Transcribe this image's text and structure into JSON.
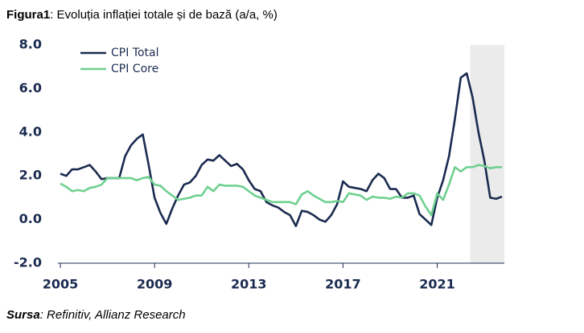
{
  "chart_data": {
    "type": "line",
    "title_label": "Figura1",
    "title": ": Evoluția inflației totale și de bază (a/a, %)",
    "source_label": "Sursa",
    "source": ": Refinitiv, Allianz Research",
    "x": [
      2005,
      2005.25,
      2005.5,
      2005.75,
      2006,
      2006.25,
      2006.5,
      2006.75,
      2007,
      2007.25,
      2007.5,
      2007.75,
      2008,
      2008.25,
      2008.5,
      2008.75,
      2009,
      2009.25,
      2009.5,
      2009.75,
      2010,
      2010.25,
      2010.5,
      2010.75,
      2011,
      2011.25,
      2011.5,
      2011.75,
      2012,
      2012.25,
      2012.5,
      2012.75,
      2013,
      2013.25,
      2013.5,
      2013.75,
      2014,
      2014.25,
      2014.5,
      2014.75,
      2015,
      2015.25,
      2015.5,
      2015.75,
      2016,
      2016.25,
      2016.5,
      2016.75,
      2017,
      2017.25,
      2017.5,
      2017.75,
      2018,
      2018.25,
      2018.5,
      2018.75,
      2019,
      2019.25,
      2019.5,
      2019.75,
      2020,
      2020.25,
      2020.5,
      2020.75,
      2021,
      2021.25,
      2021.5,
      2021.75,
      2022,
      2022.25,
      2022.5,
      2022.75,
      2023,
      2023.25,
      2023.5,
      2023.75
    ],
    "series": [
      {
        "name": "CPI Total",
        "color": "#1b2b50",
        "values": [
          2.1,
          2.0,
          2.3,
          2.3,
          2.4,
          2.5,
          2.2,
          1.85,
          1.9,
          1.9,
          1.9,
          2.9,
          3.4,
          3.7,
          3.9,
          2.5,
          1.0,
          0.3,
          -0.2,
          0.5,
          1.1,
          1.6,
          1.7,
          2.0,
          2.5,
          2.75,
          2.7,
          2.95,
          2.7,
          2.45,
          2.55,
          2.3,
          1.8,
          1.4,
          1.3,
          0.8,
          0.65,
          0.55,
          0.35,
          0.2,
          -0.3,
          0.4,
          0.35,
          0.2,
          0.0,
          -0.1,
          0.2,
          0.7,
          1.75,
          1.5,
          1.45,
          1.4,
          1.3,
          1.8,
          2.1,
          1.9,
          1.4,
          1.4,
          1.0,
          1.0,
          1.1,
          0.25,
          0.0,
          -0.25,
          1.0,
          1.8,
          2.9,
          4.6,
          6.5,
          6.7,
          5.6,
          4.0,
          2.7,
          1.0,
          0.95,
          1.05
        ]
      },
      {
        "name": "CPI Core",
        "color": "#6fd08f",
        "values": [
          1.65,
          1.5,
          1.3,
          1.35,
          1.3,
          1.45,
          1.5,
          1.6,
          1.9,
          1.9,
          1.9,
          1.9,
          1.9,
          1.8,
          1.9,
          1.95,
          1.6,
          1.55,
          1.3,
          1.1,
          0.9,
          0.95,
          1.0,
          1.1,
          1.1,
          1.5,
          1.3,
          1.6,
          1.55,
          1.55,
          1.55,
          1.5,
          1.3,
          1.1,
          1.0,
          0.9,
          0.8,
          0.8,
          0.8,
          0.8,
          0.7,
          1.15,
          1.3,
          1.1,
          0.95,
          0.8,
          0.8,
          0.85,
          0.8,
          1.2,
          1.15,
          1.1,
          0.9,
          1.05,
          1.0,
          1.0,
          0.95,
          1.05,
          1.0,
          1.2,
          1.2,
          1.1,
          0.6,
          0.2,
          1.2,
          0.9,
          1.6,
          2.4,
          2.2,
          2.4,
          2.4,
          2.5,
          2.45,
          2.35,
          2.4,
          2.4
        ]
      }
    ],
    "highlight_range": [
      2022.4,
      2023.85
    ],
    "highlight_color": "#ebebeb",
    "xlim": [
      2005,
      2023.85
    ],
    "xticks": [
      2005,
      2009,
      2013,
      2017,
      2021
    ],
    "ylim": [
      -2,
      8
    ],
    "yticks": [
      {
        "value": -2,
        "label": "-2.0"
      },
      {
        "value": 0,
        "label": "0.0"
      },
      {
        "value": 2,
        "label": "2.0"
      },
      {
        "value": 4,
        "label": "4.0"
      },
      {
        "value": 6,
        "label": "6.0"
      },
      {
        "value": 8,
        "label": "8.0"
      }
    ],
    "legend": "upper left",
    "grid": false
  }
}
